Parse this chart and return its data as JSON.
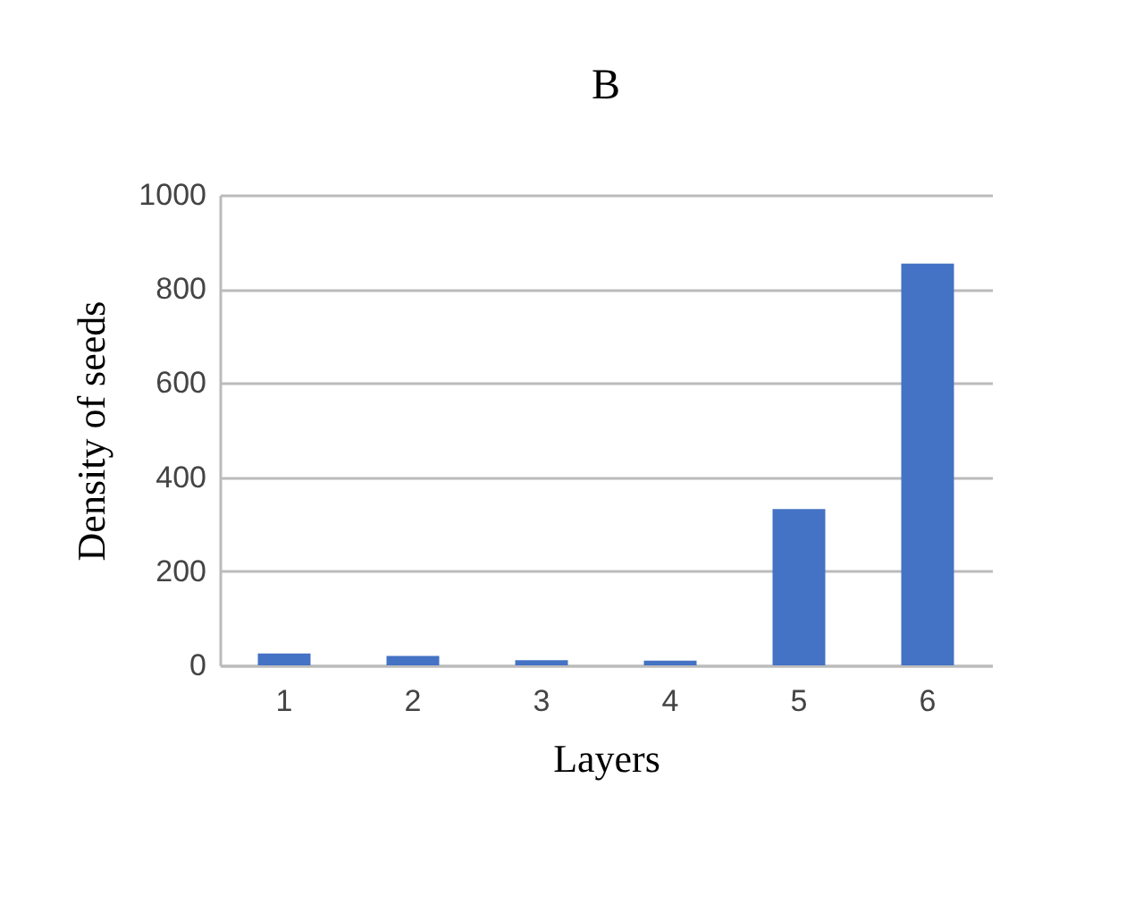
{
  "chart_data": {
    "type": "bar",
    "title": "B",
    "xlabel": "Layers",
    "ylabel": "Density of seeds",
    "categories": [
      "1",
      "2",
      "3",
      "4",
      "5",
      "6"
    ],
    "values": [
      25,
      20,
      11,
      10,
      332,
      854
    ],
    "color": "#4472c4",
    "ylim": [
      0,
      1000
    ],
    "yticks": [
      0,
      200,
      400,
      600,
      800,
      1000
    ],
    "grid": "y"
  }
}
